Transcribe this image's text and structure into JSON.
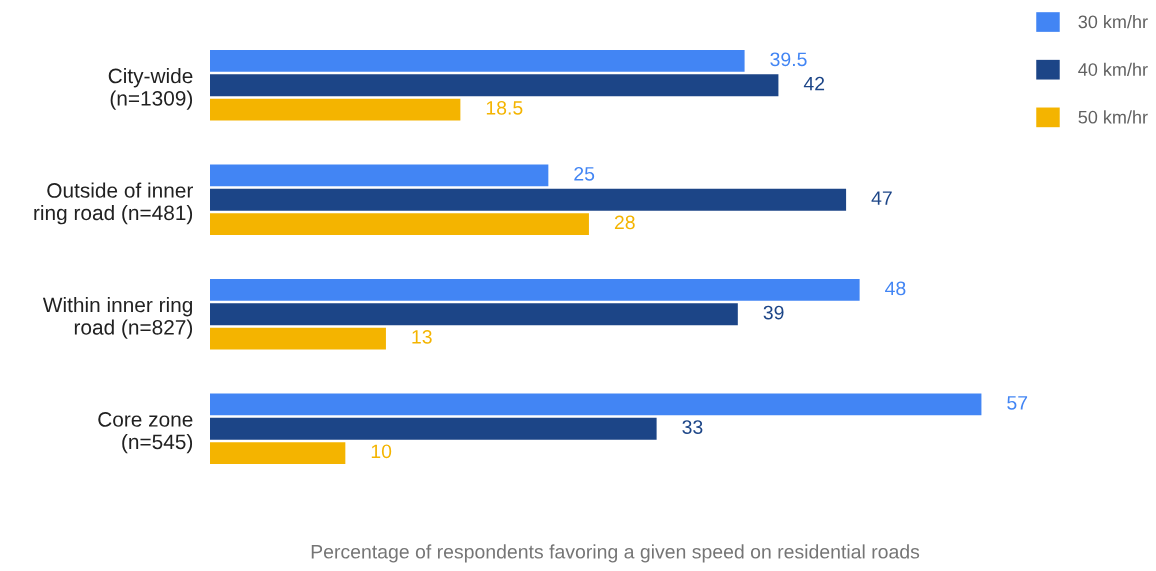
{
  "chart_data": {
    "type": "bar",
    "orientation": "horizontal",
    "xlabel": "Percentage of respondents favoring a given speed on residential roads",
    "categories": [
      "City-wide\n(n=1309)",
      "Outside of inner\nring road (n=481)",
      "Within inner ring\nroad (n=827)",
      "Core zone\n(n=545)"
    ],
    "series": [
      {
        "name": "30 km/hr",
        "color": "#4285f4",
        "values": [
          39.5,
          25,
          48,
          57
        ]
      },
      {
        "name": "40 km/hr",
        "color": "#1c4587",
        "values": [
          42,
          47,
          39,
          33
        ]
      },
      {
        "name": "50 km/hr",
        "color": "#f4b400",
        "values": [
          18.5,
          28,
          13,
          10
        ]
      }
    ],
    "tick_labels": "y",
    "data_labels": true,
    "legend": "top right",
    "grid": false
  }
}
